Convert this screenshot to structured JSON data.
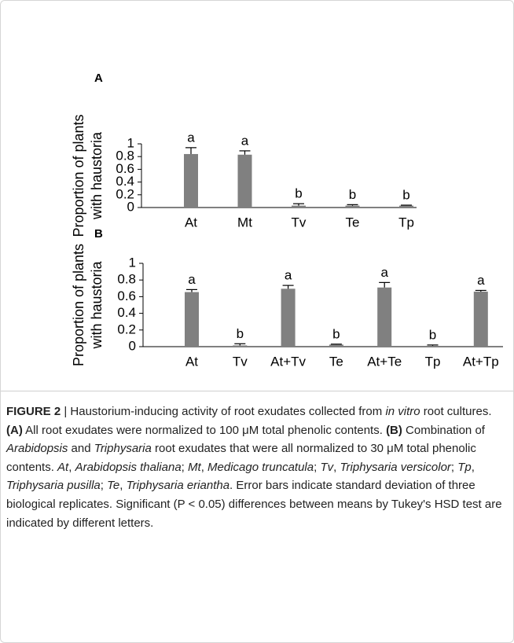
{
  "chart_data": [
    {
      "type": "bar",
      "panel": "A",
      "ylabel": [
        "Proportion of plants",
        "with haustoria"
      ],
      "categories": [
        "At",
        "Mt",
        "Tv",
        "Te",
        "Tp"
      ],
      "values": [
        0.84,
        0.83,
        0.03,
        0.03,
        0.03
      ],
      "errors": [
        0.1,
        0.06,
        0.03,
        0.015,
        0.007
      ],
      "letters": [
        "a",
        "a",
        "b",
        "b",
        "b"
      ],
      "color": "#808080",
      "ylim": [
        0,
        1
      ],
      "yticks": [
        0,
        0.2,
        0.4,
        0.6,
        0.8,
        1
      ]
    },
    {
      "type": "bar",
      "panel": "B",
      "ylabel": [
        "Proportion of plants",
        "with haustoria"
      ],
      "categories": [
        "At",
        "Tv",
        "At+Tv",
        "Te",
        "At+Te",
        "Tp",
        "At+Tp"
      ],
      "values": [
        0.655,
        0.015,
        0.695,
        0.025,
        0.71,
        0.01,
        0.66
      ],
      "errors": [
        0.03,
        0.02,
        0.04,
        0.005,
        0.06,
        0.01,
        0.015
      ],
      "letters": [
        "a",
        "b",
        "a",
        "b",
        "a",
        "b",
        "a"
      ],
      "color": "#808080",
      "ylim": [
        0,
        1
      ],
      "yticks": [
        0,
        0.2,
        0.4,
        0.6,
        0.8,
        1
      ]
    }
  ],
  "caption": [
    {
      "text": "FIGURE 2",
      "style": "bold"
    },
    {
      "text": " | Haustorium-inducing activity of root exudates collected from "
    },
    {
      "text": "in vitro",
      "style": "italic"
    },
    {
      "text": " root cultures. "
    },
    {
      "text": "(A)",
      "style": "bold"
    },
    {
      "text": " All root exudates were normalized to 100 μM total phenolic contents. "
    },
    {
      "text": "(B)",
      "style": "bold"
    },
    {
      "text": " Combination of "
    },
    {
      "text": "Arabidopsis",
      "style": "italic"
    },
    {
      "text": " and "
    },
    {
      "text": "Triphysaria",
      "style": "italic"
    },
    {
      "text": " root exudates that were all normalized to 30 μM total phenolic contents. "
    },
    {
      "text": "At",
      "style": "italic"
    },
    {
      "text": ", "
    },
    {
      "text": "Arabidopsis thaliana",
      "style": "italic"
    },
    {
      "text": "; "
    },
    {
      "text": "Mt",
      "style": "italic"
    },
    {
      "text": ", "
    },
    {
      "text": "Medicago truncatula",
      "style": "italic"
    },
    {
      "text": "; "
    },
    {
      "text": "Tv",
      "style": "italic"
    },
    {
      "text": ", "
    },
    {
      "text": "Triphysaria versicolor",
      "style": "italic"
    },
    {
      "text": "; "
    },
    {
      "text": "Tp",
      "style": "italic"
    },
    {
      "text": ", "
    },
    {
      "text": "Triphysaria pusilla",
      "style": "italic"
    },
    {
      "text": "; "
    },
    {
      "text": "Te",
      "style": "italic"
    },
    {
      "text": ", "
    },
    {
      "text": "Triphysaria eriantha",
      "style": "italic"
    },
    {
      "text": ". Error bars indicate standard deviation of three biological replicates. Significant (P < 0.05) differences between means by Tukey's HSD test are indicated by different letters."
    }
  ]
}
